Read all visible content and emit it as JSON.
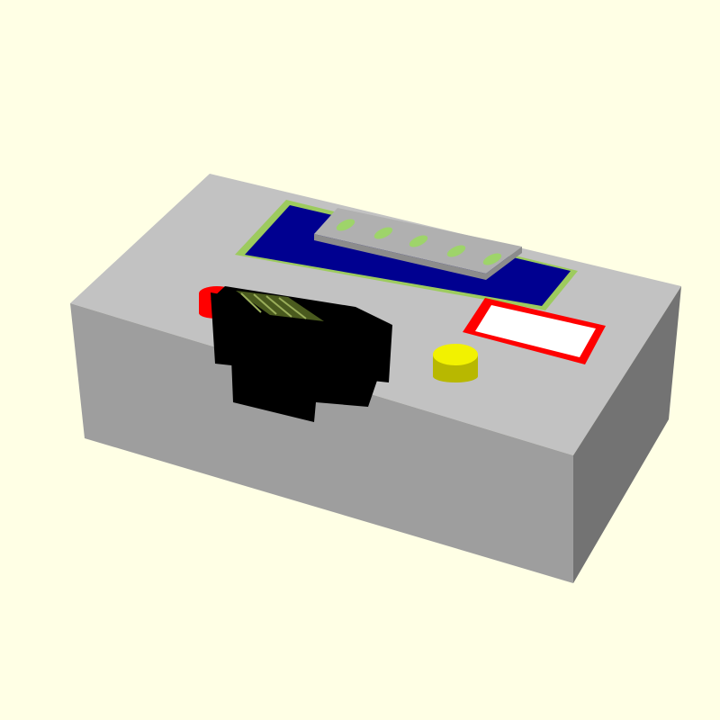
{
  "scene": {
    "background": "#FFFFE5",
    "objects": [
      "enclosure-box",
      "lcd-display",
      "pin-header",
      "red-push-button",
      "yellow-push-button",
      "black-connector",
      "label-window"
    ]
  },
  "colors": {
    "enclosure_top": "#C2C2C2",
    "enclosure_front": "#9E9E9E",
    "enclosure_side": "#737373",
    "pcb": "#9DCB5E",
    "lcd_screen": "#000090",
    "header_top": "#B0B0B0",
    "header_side": "#8C8C8C",
    "pin": "#9ED46A",
    "button_red": "#FF0000",
    "button_yellow": "#F2F200",
    "connector": "#000000",
    "label_border": "#FF0000",
    "label_fill": "#FFFFFF"
  }
}
